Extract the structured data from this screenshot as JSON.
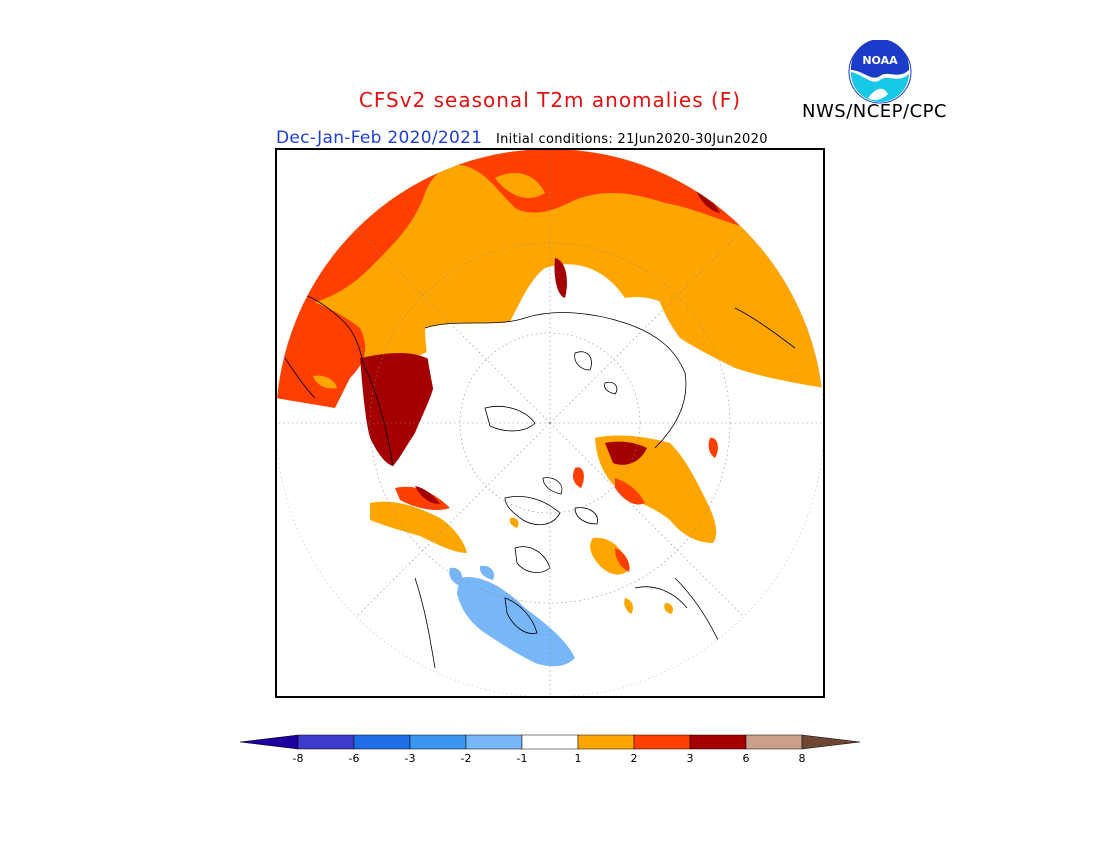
{
  "header": {
    "title": "CFSv2 seasonal T2m anomalies (F)",
    "organization": "NWS/NCEP/CPC",
    "season": "Dec-Jan-Feb 2020/2021",
    "initial_conditions": "Initial conditions: 21Jun2020-30Jun2020"
  },
  "logo": {
    "text": "NOAA"
  },
  "map": {
    "projection": "north-polar-stereographic",
    "colors": {
      "white": "#ffffff",
      "orange": "#ffa500",
      "red_orange": "#ff3f00",
      "dark_red": "#a50000",
      "light_blue": "#77b6f7",
      "coast": "#000000"
    }
  },
  "colorbar": {
    "ticks": [
      "-8",
      "-6",
      "-3",
      "-2",
      "-1",
      "1",
      "2",
      "3",
      "6",
      "8"
    ],
    "colors": [
      "#1e00a0",
      "#3c3ccc",
      "#1e6ee8",
      "#3c96f0",
      "#77b6f7",
      "#ffffff",
      "#ffa500",
      "#ff3f00",
      "#a50000",
      "#c8a08c",
      "#6e4632"
    ]
  }
}
